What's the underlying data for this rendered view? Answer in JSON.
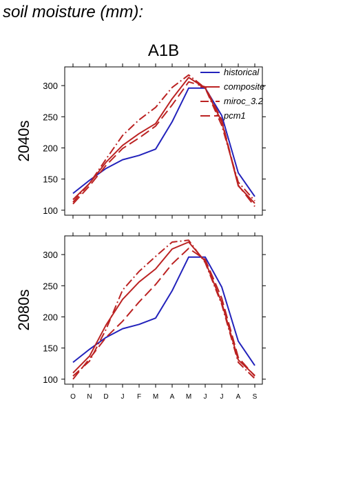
{
  "page": {
    "title": "soil moisture (mm):"
  },
  "chart_data": {
    "type": "line",
    "title": "A1B",
    "x": [
      "O",
      "N",
      "D",
      "J",
      "F",
      "M",
      "A",
      "M",
      "J",
      "J",
      "A",
      "S"
    ],
    "ylim": [
      92,
      330
    ],
    "yticks": [
      100,
      150,
      200,
      250,
      300
    ],
    "grid": false,
    "legend_position": "top-right",
    "colors": {
      "historical": "#2222bb",
      "projection": "#bb2222"
    },
    "panels": [
      {
        "ylabel": "2040s",
        "series": [
          {
            "name": "historical",
            "style": "solid",
            "color": "#2222bb",
            "values": [
              127,
              148,
              167,
              181,
              188,
              198,
              242,
              296,
              296,
              252,
              160,
              122
            ]
          },
          {
            "name": "composite",
            "style": "solid",
            "color": "#bb2222",
            "values": [
              117,
              143,
              177,
              204,
              223,
              239,
              279,
              313,
              296,
              242,
              139,
              111
            ]
          },
          {
            "name": "miroc_3.2",
            "style": "dashdot",
            "color": "#bb2222",
            "values": [
              113,
              143,
              182,
              220,
              245,
              265,
              297,
              317,
              296,
              236,
              145,
              115
            ]
          },
          {
            "name": "pcm1",
            "style": "longdash",
            "color": "#bb2222",
            "values": [
              110,
              139,
              172,
              199,
              216,
              235,
              269,
              306,
              298,
              245,
              140,
              106
            ]
          }
        ]
      },
      {
        "ylabel": "2080s",
        "series": [
          {
            "name": "historical",
            "style": "solid",
            "color": "#2222bb",
            "values": [
              127,
              148,
              167,
              181,
              188,
              198,
              242,
              296,
              296,
              248,
              161,
              122
            ]
          },
          {
            "name": "composite",
            "style": "solid",
            "color": "#bb2222",
            "values": [
              110,
              137,
              187,
              228,
              256,
              277,
              309,
              320,
              289,
              223,
              131,
              106
            ]
          },
          {
            "name": "miroc_3.2",
            "style": "dashdot",
            "color": "#bb2222",
            "values": [
              105,
              129,
              180,
              243,
              273,
              297,
              320,
              323,
              287,
              220,
              127,
              101
            ]
          },
          {
            "name": "pcm1",
            "style": "longdash",
            "color": "#bb2222",
            "values": [
              100,
              133,
              167,
              193,
              224,
              252,
              285,
              310,
              292,
              230,
              135,
              105
            ]
          }
        ]
      }
    ]
  }
}
